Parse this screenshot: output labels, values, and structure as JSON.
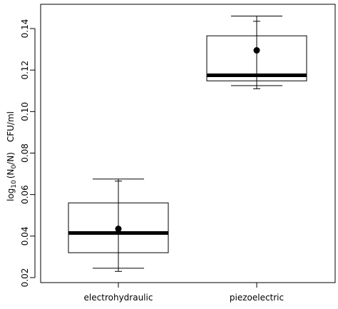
{
  "chart_data": {
    "type": "box",
    "categories": [
      "electrohydraulic",
      "piezoelectric"
    ],
    "ylabel": {
      "log_prefix": "log",
      "log_base": "10",
      "paren_open": "(N",
      "sub0": "0",
      "paren_close": "/N)",
      "unit": "CFU/ml"
    },
    "ylim": [
      0.02,
      0.15
    ],
    "yticks": [
      "0.02",
      "0.04",
      "0.06",
      "0.08",
      "0.10",
      "0.12",
      "0.14"
    ],
    "ytick_values": [
      0.02,
      0.04,
      0.06,
      0.08,
      0.1,
      0.12,
      0.14
    ],
    "boxes": [
      {
        "whisker_low": 0.0245,
        "q1": 0.032,
        "median": 0.0415,
        "q3": 0.056,
        "whisker_high": 0.0675
      },
      {
        "whisker_low": 0.1125,
        "q1": 0.1148,
        "median": 0.1175,
        "q3": 0.1365,
        "whisker_high": 0.146
      }
    ],
    "means": [
      {
        "mean": 0.0435,
        "err_low": 0.023,
        "err_high": 0.0665
      },
      {
        "mean": 0.1295,
        "err_low": 0.111,
        "err_high": 0.1435
      }
    ],
    "grid": false,
    "legend": "none"
  }
}
